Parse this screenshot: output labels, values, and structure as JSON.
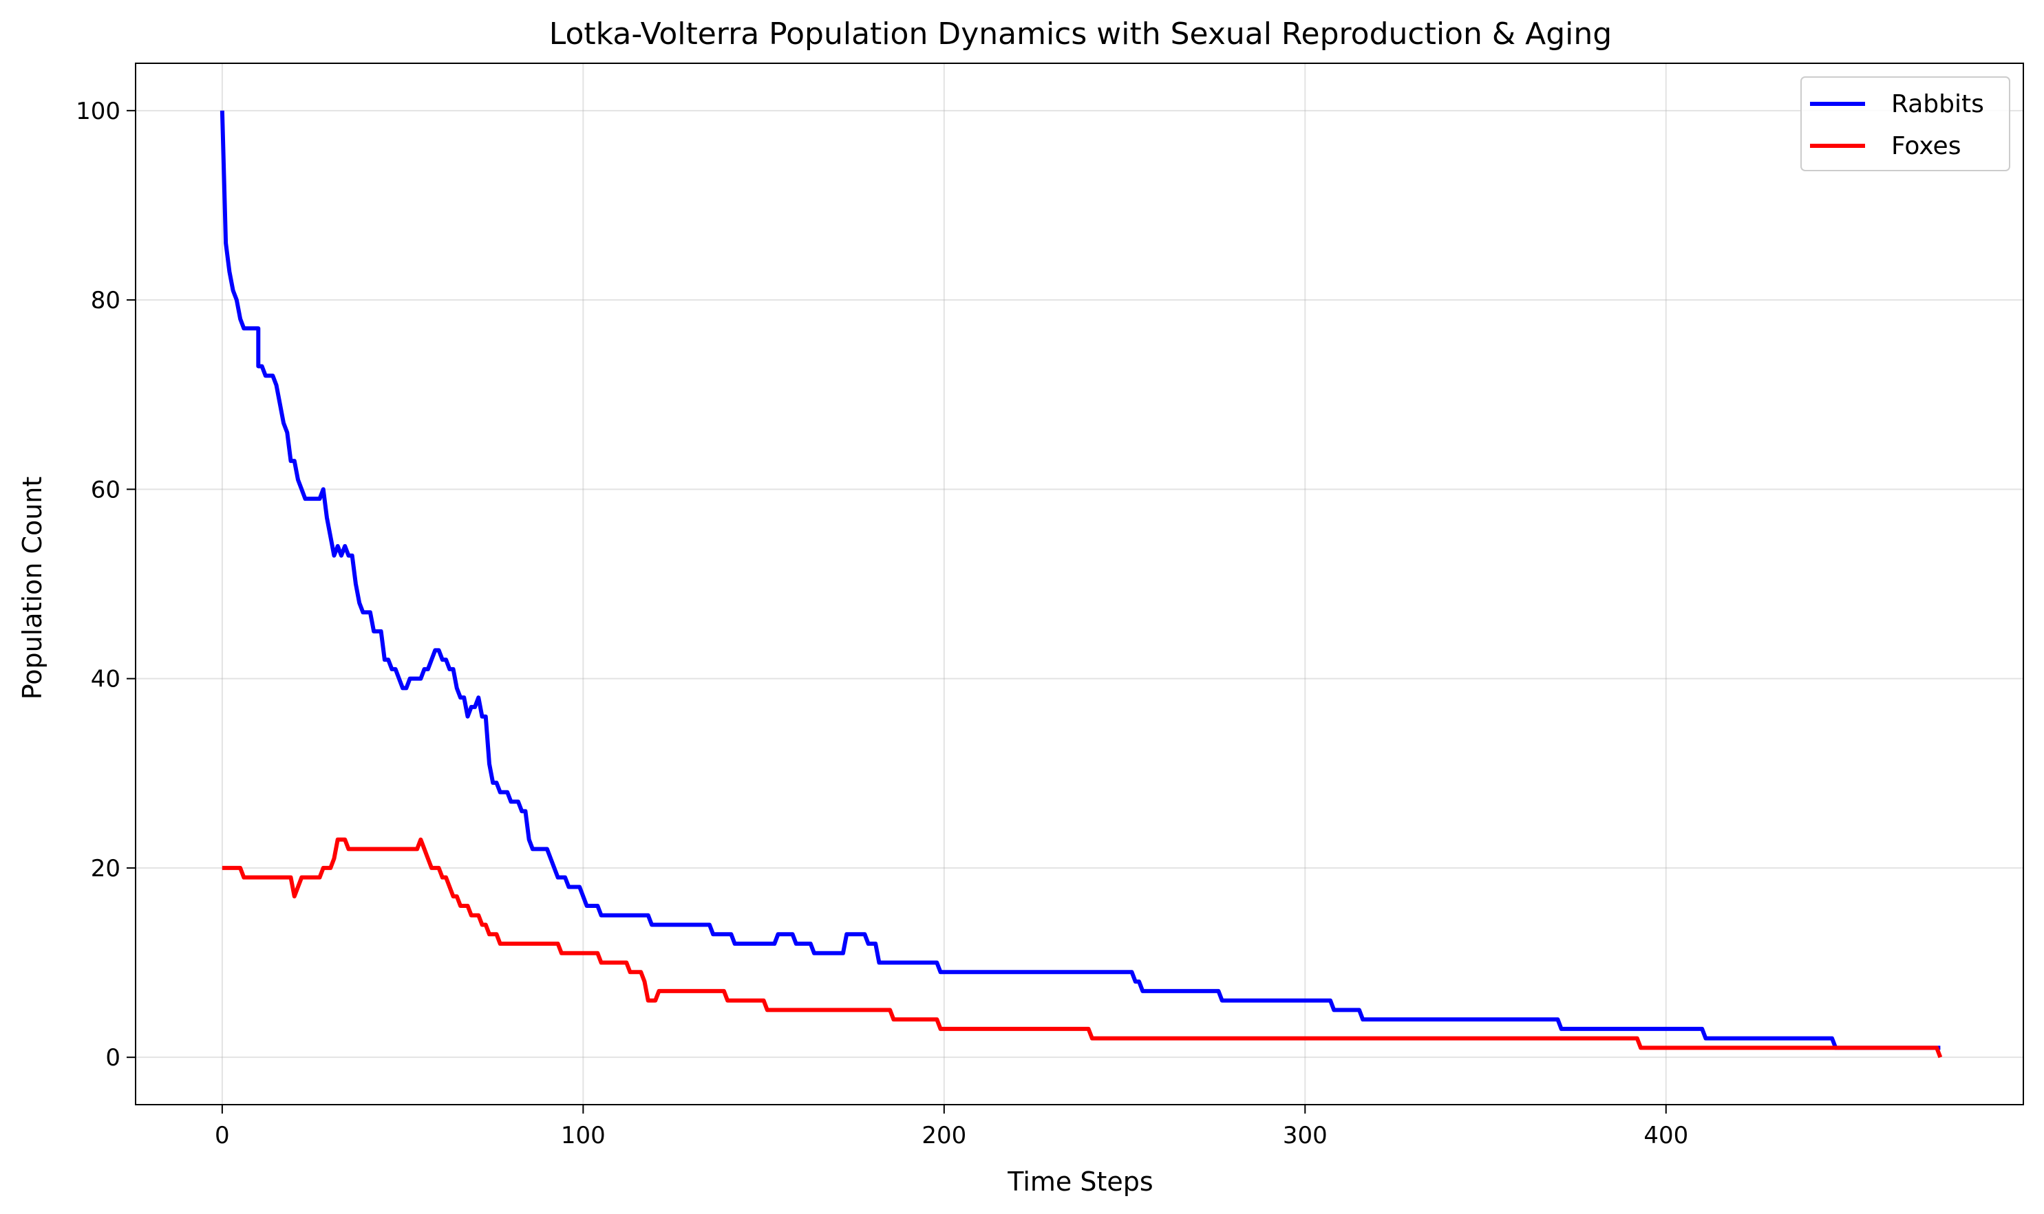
{
  "chart_data": {
    "type": "line",
    "title": "Lotka-Volterra Population Dynamics with Sexual Reproduction & Aging",
    "xlabel": "Time Steps",
    "ylabel": "Population Count",
    "xlim": [
      -24,
      499
    ],
    "ylim": [
      -5,
      105
    ],
    "xticks": [
      0,
      100,
      200,
      300,
      400
    ],
    "yticks": [
      0,
      20,
      40,
      60,
      80,
      100
    ],
    "grid": true,
    "legend": "top-right",
    "series": [
      {
        "name": "Rabbits",
        "color": "#0000ff",
        "points": [
          [
            0,
            100
          ],
          [
            1,
            86
          ],
          [
            2,
            83
          ],
          [
            3,
            81
          ],
          [
            4,
            80
          ],
          [
            5,
            78
          ],
          [
            6,
            77
          ],
          [
            10,
            77
          ],
          [
            10,
            73
          ],
          [
            11,
            73
          ],
          [
            12,
            72
          ],
          [
            14,
            72
          ],
          [
            15,
            71
          ],
          [
            16,
            69
          ],
          [
            17,
            67
          ],
          [
            18,
            66
          ],
          [
            19,
            63
          ],
          [
            20,
            63
          ],
          [
            21,
            61
          ],
          [
            22,
            60
          ],
          [
            23,
            59
          ],
          [
            27,
            59
          ],
          [
            28,
            60
          ],
          [
            29,
            57
          ],
          [
            30,
            55
          ],
          [
            31,
            53
          ],
          [
            32,
            54
          ],
          [
            33,
            53
          ],
          [
            34,
            54
          ],
          [
            35,
            53
          ],
          [
            36,
            53
          ],
          [
            37,
            50
          ],
          [
            38,
            48
          ],
          [
            39,
            47
          ],
          [
            41,
            47
          ],
          [
            42,
            45
          ],
          [
            44,
            45
          ],
          [
            45,
            42
          ],
          [
            46,
            42
          ],
          [
            47,
            41
          ],
          [
            48,
            41
          ],
          [
            49,
            40
          ],
          [
            50,
            39
          ],
          [
            51,
            39
          ],
          [
            52,
            40
          ],
          [
            55,
            40
          ],
          [
            56,
            41
          ],
          [
            57,
            41
          ],
          [
            58,
            42
          ],
          [
            59,
            43
          ],
          [
            60,
            43
          ],
          [
            61,
            42
          ],
          [
            62,
            42
          ],
          [
            63,
            41
          ],
          [
            64,
            41
          ],
          [
            65,
            39
          ],
          [
            66,
            38
          ],
          [
            67,
            38
          ],
          [
            68,
            36
          ],
          [
            69,
            37
          ],
          [
            70,
            37
          ],
          [
            71,
            38
          ],
          [
            72,
            36
          ],
          [
            73,
            36
          ],
          [
            74,
            31
          ],
          [
            75,
            29
          ],
          [
            76,
            29
          ],
          [
            77,
            28
          ],
          [
            79,
            28
          ],
          [
            80,
            27
          ],
          [
            82,
            27
          ],
          [
            83,
            26
          ],
          [
            84,
            26
          ],
          [
            85,
            23
          ],
          [
            86,
            22
          ],
          [
            90,
            22
          ],
          [
            91,
            21
          ],
          [
            92,
            20
          ],
          [
            93,
            19
          ],
          [
            95,
            19
          ],
          [
            96,
            18
          ],
          [
            99,
            18
          ],
          [
            100,
            17
          ],
          [
            101,
            16
          ],
          [
            104,
            16
          ],
          [
            105,
            15
          ],
          [
            118,
            15
          ],
          [
            119,
            14
          ],
          [
            135,
            14
          ],
          [
            136,
            13
          ],
          [
            141,
            13
          ],
          [
            142,
            12
          ],
          [
            153,
            12
          ],
          [
            154,
            13
          ],
          [
            158,
            13
          ],
          [
            159,
            12
          ],
          [
            163,
            12
          ],
          [
            164,
            11
          ],
          [
            172,
            11
          ],
          [
            173,
            13
          ],
          [
            178,
            13
          ],
          [
            179,
            12
          ],
          [
            181,
            12
          ],
          [
            182,
            10
          ],
          [
            198,
            10
          ],
          [
            199,
            9
          ],
          [
            252,
            9
          ],
          [
            253,
            8
          ],
          [
            254,
            8
          ],
          [
            255,
            7
          ],
          [
            276,
            7
          ],
          [
            277,
            6
          ],
          [
            307,
            6
          ],
          [
            308,
            5
          ],
          [
            315,
            5
          ],
          [
            316,
            4
          ],
          [
            370,
            4
          ],
          [
            371,
            3
          ],
          [
            410,
            3
          ],
          [
            411,
            2
          ],
          [
            446,
            2
          ],
          [
            447,
            1
          ],
          [
            476,
            1
          ]
        ]
      },
      {
        "name": "Foxes",
        "color": "#ff0000",
        "points": [
          [
            0,
            20
          ],
          [
            5,
            20
          ],
          [
            6,
            19
          ],
          [
            19,
            19
          ],
          [
            20,
            17
          ],
          [
            21,
            18
          ],
          [
            22,
            19
          ],
          [
            27,
            19
          ],
          [
            28,
            20
          ],
          [
            30,
            20
          ],
          [
            31,
            21
          ],
          [
            32,
            23
          ],
          [
            34,
            23
          ],
          [
            35,
            22
          ],
          [
            54,
            22
          ],
          [
            55,
            23
          ],
          [
            56,
            22
          ],
          [
            57,
            21
          ],
          [
            58,
            20
          ],
          [
            60,
            20
          ],
          [
            61,
            19
          ],
          [
            62,
            19
          ],
          [
            63,
            18
          ],
          [
            64,
            17
          ],
          [
            65,
            17
          ],
          [
            66,
            16
          ],
          [
            68,
            16
          ],
          [
            69,
            15
          ],
          [
            71,
            15
          ],
          [
            72,
            14
          ],
          [
            73,
            14
          ],
          [
            74,
            13
          ],
          [
            76,
            13
          ],
          [
            77,
            12
          ],
          [
            93,
            12
          ],
          [
            94,
            11
          ],
          [
            104,
            11
          ],
          [
            105,
            10
          ],
          [
            112,
            10
          ],
          [
            113,
            9
          ],
          [
            116,
            9
          ],
          [
            117,
            8
          ],
          [
            118,
            6
          ],
          [
            120,
            6
          ],
          [
            121,
            7
          ],
          [
            139,
            7
          ],
          [
            140,
            6
          ],
          [
            150,
            6
          ],
          [
            151,
            5
          ],
          [
            185,
            5
          ],
          [
            186,
            4
          ],
          [
            198,
            4
          ],
          [
            199,
            3
          ],
          [
            240,
            3
          ],
          [
            241,
            2
          ],
          [
            392,
            2
          ],
          [
            393,
            1
          ],
          [
            475,
            1
          ],
          [
            476,
            0
          ]
        ]
      }
    ]
  }
}
